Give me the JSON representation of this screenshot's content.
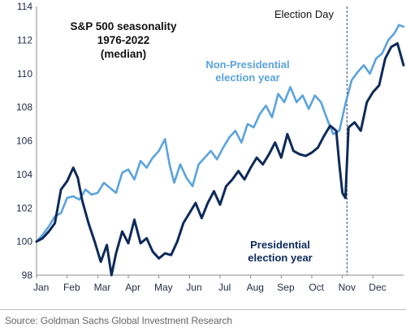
{
  "chart_data": {
    "type": "line",
    "title": [
      "S&P 500 seasonality",
      "1976-2022",
      "(median)"
    ],
    "xlabel": "",
    "ylabel": "",
    "categories": [
      "Jan",
      "Feb",
      "Mar",
      "Apr",
      "May",
      "Jun",
      "Jul",
      "Aug",
      "Sep",
      "Oct",
      "Nov",
      "Dec"
    ],
    "ylim": [
      98,
      114
    ],
    "yticks": [
      98,
      100,
      102,
      104,
      106,
      108,
      110,
      112,
      114
    ],
    "grid": false,
    "vline": {
      "x": 10.15,
      "label": "Election Day"
    },
    "series": [
      {
        "name": "Non-Presidential election year",
        "label_lines": [
          "Non-Presidential",
          "election year"
        ],
        "color": "#5ba3dc",
        "points": [
          [
            0.0,
            100.0
          ],
          [
            0.2,
            100.4
          ],
          [
            0.4,
            100.9
          ],
          [
            0.6,
            101.5
          ],
          [
            0.8,
            101.7
          ],
          [
            1.0,
            102.6
          ],
          [
            1.2,
            102.7
          ],
          [
            1.4,
            102.5
          ],
          [
            1.6,
            103.1
          ],
          [
            1.8,
            102.8
          ],
          [
            2.0,
            102.9
          ],
          [
            2.2,
            103.5
          ],
          [
            2.4,
            103.2
          ],
          [
            2.6,
            102.9
          ],
          [
            2.8,
            104.1
          ],
          [
            3.0,
            104.3
          ],
          [
            3.2,
            103.7
          ],
          [
            3.4,
            104.8
          ],
          [
            3.6,
            104.4
          ],
          [
            3.8,
            105.0
          ],
          [
            4.0,
            105.4
          ],
          [
            4.2,
            106.1
          ],
          [
            4.35,
            104.6
          ],
          [
            4.5,
            103.5
          ],
          [
            4.7,
            104.6
          ],
          [
            4.9,
            103.8
          ],
          [
            5.1,
            103.3
          ],
          [
            5.3,
            104.6
          ],
          [
            5.5,
            105.0
          ],
          [
            5.7,
            105.4
          ],
          [
            5.9,
            104.9
          ],
          [
            6.1,
            105.6
          ],
          [
            6.3,
            106.2
          ],
          [
            6.5,
            106.6
          ],
          [
            6.7,
            105.9
          ],
          [
            6.9,
            107.0
          ],
          [
            7.1,
            106.8
          ],
          [
            7.3,
            107.6
          ],
          [
            7.5,
            108.1
          ],
          [
            7.7,
            107.4
          ],
          [
            7.9,
            108.8
          ],
          [
            8.1,
            108.3
          ],
          [
            8.3,
            109.2
          ],
          [
            8.5,
            108.3
          ],
          [
            8.7,
            108.7
          ],
          [
            8.9,
            107.9
          ],
          [
            9.1,
            108.7
          ],
          [
            9.3,
            108.3
          ],
          [
            9.5,
            107.3
          ],
          [
            9.7,
            106.4
          ],
          [
            9.9,
            106.6
          ],
          [
            10.1,
            108.2
          ],
          [
            10.3,
            109.6
          ],
          [
            10.5,
            110.1
          ],
          [
            10.7,
            110.5
          ],
          [
            10.9,
            110.0
          ],
          [
            11.1,
            110.9
          ],
          [
            11.3,
            111.2
          ],
          [
            11.5,
            112.0
          ],
          [
            11.7,
            112.4
          ],
          [
            11.85,
            112.9
          ],
          [
            12.0,
            112.8
          ]
        ]
      },
      {
        "name": "Presidential election year",
        "label_lines": [
          "Presidential",
          "election year"
        ],
        "color": "#0e2a5a",
        "points": [
          [
            0.0,
            100.0
          ],
          [
            0.2,
            100.2
          ],
          [
            0.4,
            100.6
          ],
          [
            0.6,
            101.1
          ],
          [
            0.8,
            103.1
          ],
          [
            1.0,
            103.6
          ],
          [
            1.2,
            104.4
          ],
          [
            1.35,
            103.8
          ],
          [
            1.5,
            102.4
          ],
          [
            1.7,
            101.1
          ],
          [
            1.9,
            100.0
          ],
          [
            2.1,
            98.8
          ],
          [
            2.3,
            99.8
          ],
          [
            2.45,
            98.0
          ],
          [
            2.6,
            99.3
          ],
          [
            2.8,
            100.6
          ],
          [
            3.0,
            99.9
          ],
          [
            3.2,
            101.3
          ],
          [
            3.4,
            99.9
          ],
          [
            3.6,
            100.2
          ],
          [
            3.8,
            99.4
          ],
          [
            4.0,
            99.0
          ],
          [
            4.2,
            99.3
          ],
          [
            4.4,
            99.2
          ],
          [
            4.6,
            100.0
          ],
          [
            4.8,
            101.1
          ],
          [
            5.0,
            101.7
          ],
          [
            5.2,
            102.3
          ],
          [
            5.4,
            101.4
          ],
          [
            5.6,
            102.3
          ],
          [
            5.8,
            103.0
          ],
          [
            6.0,
            102.2
          ],
          [
            6.2,
            103.3
          ],
          [
            6.4,
            103.7
          ],
          [
            6.6,
            104.2
          ],
          [
            6.8,
            103.7
          ],
          [
            7.0,
            104.4
          ],
          [
            7.2,
            105.0
          ],
          [
            7.4,
            104.6
          ],
          [
            7.6,
            105.2
          ],
          [
            7.8,
            105.9
          ],
          [
            8.0,
            105.0
          ],
          [
            8.2,
            106.4
          ],
          [
            8.4,
            105.4
          ],
          [
            8.6,
            105.2
          ],
          [
            8.8,
            105.1
          ],
          [
            9.0,
            105.3
          ],
          [
            9.2,
            105.6
          ],
          [
            9.4,
            106.3
          ],
          [
            9.6,
            106.9
          ],
          [
            9.8,
            106.6
          ],
          [
            9.9,
            104.6
          ],
          [
            10.0,
            102.9
          ],
          [
            10.1,
            102.6
          ],
          [
            10.2,
            106.8
          ],
          [
            10.4,
            107.1
          ],
          [
            10.6,
            106.6
          ],
          [
            10.8,
            108.3
          ],
          [
            11.0,
            108.9
          ],
          [
            11.2,
            109.3
          ],
          [
            11.4,
            110.9
          ],
          [
            11.6,
            111.6
          ],
          [
            11.8,
            111.8
          ],
          [
            12.0,
            110.5
          ]
        ]
      }
    ]
  },
  "source": "Source: Goldman Sachs Global Investment Research"
}
